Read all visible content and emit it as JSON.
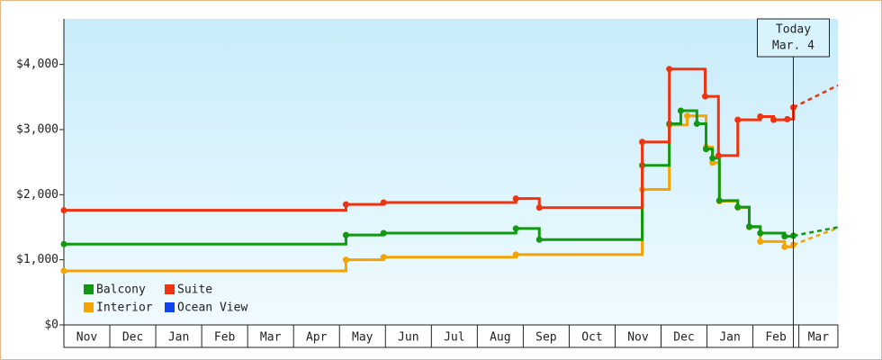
{
  "chart_data": {
    "type": "line",
    "step": true,
    "xlim": [
      0,
      16.85
    ],
    "ylim": [
      0,
      4700
    ],
    "xticks": [
      {
        "value": 0,
        "label": "Nov"
      },
      {
        "value": 1,
        "label": "Dec"
      },
      {
        "value": 2,
        "label": "Jan"
      },
      {
        "value": 3,
        "label": "Feb"
      },
      {
        "value": 4,
        "label": "Mar"
      },
      {
        "value": 5,
        "label": "Apr"
      },
      {
        "value": 6,
        "label": "May"
      },
      {
        "value": 7,
        "label": "Jun"
      },
      {
        "value": 8,
        "label": "Jul"
      },
      {
        "value": 9,
        "label": "Aug"
      },
      {
        "value": 10,
        "label": "Sep"
      },
      {
        "value": 11,
        "label": "Oct"
      },
      {
        "value": 12,
        "label": "Nov"
      },
      {
        "value": 13,
        "label": "Dec"
      },
      {
        "value": 14,
        "label": "Jan"
      },
      {
        "value": 15,
        "label": "Feb"
      },
      {
        "value": 16,
        "label": "Mar"
      }
    ],
    "yticks": [
      {
        "value": 0,
        "label": "$0"
      },
      {
        "value": 1000,
        "label": "$1,000"
      },
      {
        "value": 2000,
        "label": "$2,000"
      },
      {
        "value": 3000,
        "label": "$3,000"
      },
      {
        "value": 4000,
        "label": "$4,000"
      }
    ],
    "today": {
      "x": 15.88,
      "label": [
        "Today",
        "Mar. 4"
      ]
    },
    "legend": "lower left",
    "series": [
      {
        "name": "Balcony",
        "color": "#119911",
        "x": [
          0,
          6.14,
          6.96,
          9.84,
          10.35,
          12.59,
          13.18,
          13.43,
          13.78,
          13.98,
          14.12,
          14.27,
          14.67,
          14.92,
          15.16,
          15.69,
          15.88
        ],
        "values": [
          1240,
          1380,
          1410,
          1480,
          1310,
          2450,
          3090,
          3290,
          3090,
          2700,
          2560,
          1910,
          1810,
          1510,
          1410,
          1360,
          1370
        ],
        "forecast_x": [
          15.88,
          16.85
        ],
        "forecast_values": [
          1370,
          1500
        ]
      },
      {
        "name": "Suite",
        "color": "#ee3311",
        "x": [
          0,
          6.14,
          6.96,
          9.84,
          10.35,
          12.59,
          13.18,
          13.96,
          14.25,
          14.67,
          15.16,
          15.45,
          15.75,
          15.88
        ],
        "values": [
          1760,
          1850,
          1880,
          1940,
          1800,
          2810,
          3930,
          3510,
          2600,
          3150,
          3200,
          3150,
          3160,
          3340
        ],
        "forecast_x": [
          15.88,
          16.85
        ],
        "forecast_values": [
          3340,
          3680
        ]
      },
      {
        "name": "Interior",
        "color": "#f5a300",
        "x": [
          0,
          6.14,
          6.96,
          9.84,
          12.59,
          13.18,
          13.57,
          13.98,
          14.12,
          14.27,
          14.67,
          14.92,
          15.16,
          15.69,
          15.88
        ],
        "values": [
          830,
          1000,
          1040,
          1080,
          2080,
          3070,
          3210,
          2730,
          2490,
          1900,
          1800,
          1500,
          1280,
          1200,
          1230
        ],
        "forecast_x": [
          15.88,
          16.85
        ],
        "forecast_values": [
          1230,
          1490
        ]
      },
      {
        "name": "Ocean View",
        "color": "#1144ee",
        "x": [],
        "values": []
      }
    ]
  }
}
